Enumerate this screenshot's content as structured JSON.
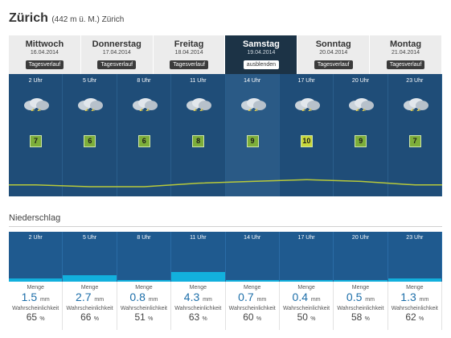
{
  "header": {
    "title": "Zürich",
    "subtitle": "(442 m ü. M.) Zürich"
  },
  "tabs": [
    {
      "day": "Mittwoch",
      "date": "16.04.2014",
      "button": "Tagesverlauf"
    },
    {
      "day": "Donnerstag",
      "date": "17.04.2014",
      "button": "Tagesverlauf"
    },
    {
      "day": "Freitag",
      "date": "18.04.2014",
      "button": "Tagesverlauf"
    },
    {
      "day": "Samstag",
      "date": "19.04.2014",
      "button": "ausblenden"
    },
    {
      "day": "Sonntag",
      "date": "20.04.2014",
      "button": "Tagesverlauf"
    },
    {
      "day": "Montag",
      "date": "21.04.2014",
      "button": "Tagesverlauf"
    }
  ],
  "active_tab": 3,
  "hours": [
    "2 Uhr",
    "5 Uhr",
    "8 Uhr",
    "11 Uhr",
    "14 Uhr",
    "17 Uhr",
    "20 Uhr",
    "23 Uhr"
  ],
  "temperatures": [
    "7",
    "6",
    "6",
    "8",
    "9",
    "10",
    "9",
    "7"
  ],
  "icons": [
    "thunderstorm-icon",
    "thunderstorm-icon",
    "thunderstorm-icon",
    "thunderstorm-icon",
    "thunderstorm-icon",
    "thunderstorm-icon",
    "thunderstorm-icon",
    "thunderstorm-icon"
  ],
  "precip": {
    "section_title": "Niederschlag",
    "amount_label": "Menge",
    "amount_unit": "mm",
    "prob_label": "Wahrscheinlichkeit",
    "prob_unit": "%",
    "amounts": [
      "1.5",
      "2.7",
      "0.8",
      "4.3",
      "0.7",
      "0.4",
      "0.5",
      "1.3"
    ],
    "probabilities": [
      "65",
      "66",
      "51",
      "63",
      "60",
      "50",
      "58",
      "62"
    ]
  },
  "colors": {
    "panel": "#1f4d78",
    "active_tab": "#1c3346",
    "rain_bar": "#12b0dd",
    "temp_badge": "#7dae3a"
  }
}
